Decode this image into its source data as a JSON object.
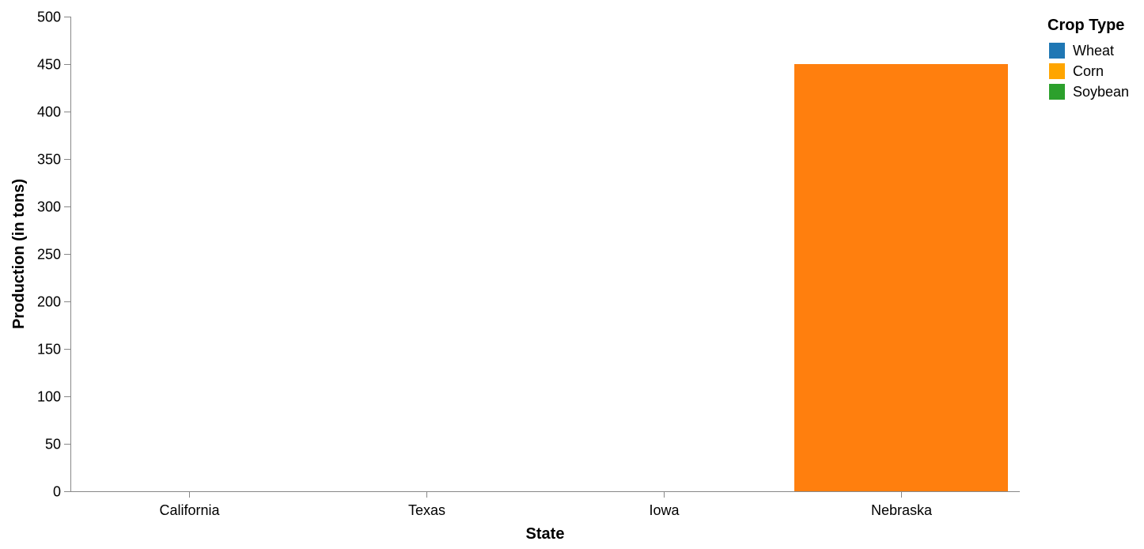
{
  "chart_data": {
    "type": "bar",
    "xlabel": "State",
    "ylabel": "Production (in tons)",
    "categories": [
      "California",
      "Texas",
      "Iowa",
      "Nebraska"
    ],
    "ylim": [
      0,
      500
    ],
    "yticks": [
      0,
      50,
      100,
      150,
      200,
      250,
      300,
      350,
      400,
      450,
      500
    ],
    "grid": false,
    "legend": {
      "title": "Crop Type",
      "position": "top-right",
      "entries": [
        {
          "name": "Wheat",
          "color": "#1f77b4"
        },
        {
          "name": "Corn",
          "color": "#ffa500"
        },
        {
          "name": "Soybean",
          "color": "#2ca02c"
        }
      ]
    },
    "bars": [
      {
        "category": "Nebraska",
        "series": "Corn",
        "value": 450,
        "color": "#ff7f0e"
      }
    ]
  }
}
